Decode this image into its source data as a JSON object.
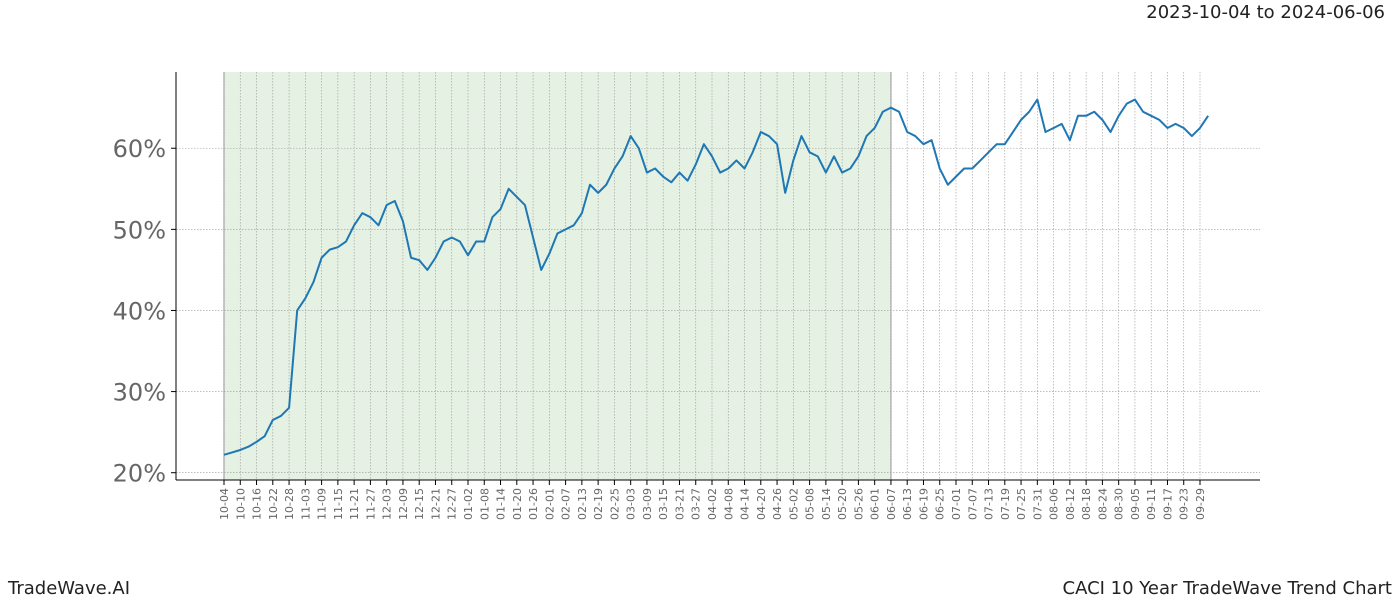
{
  "chart_data": {
    "type": "line",
    "date_range": "2023-10-04 to 2024-06-06",
    "brand": "TradeWave.AI",
    "title": "CACI 10 Year TradeWave Trend Chart",
    "categories": [
      "10-04",
      null,
      "10-10",
      null,
      "10-16",
      null,
      "10-22",
      null,
      "10-28",
      null,
      "11-03",
      null,
      "11-09",
      null,
      "11-15",
      null,
      "11-21",
      null,
      "11-27",
      null,
      "12-03",
      null,
      "12-09",
      null,
      "12-15",
      null,
      "12-21",
      null,
      "12-27",
      null,
      "01-02",
      null,
      "01-08",
      null,
      "01-14",
      null,
      "01-20",
      null,
      "01-26",
      null,
      "02-01",
      null,
      "02-07",
      null,
      "02-13",
      null,
      "02-19",
      null,
      "02-25",
      null,
      "03-03",
      null,
      "03-09",
      null,
      "03-15",
      null,
      "03-21",
      null,
      "03-27",
      null,
      "04-02",
      null,
      "04-08",
      null,
      "04-14",
      null,
      "04-20",
      null,
      "04-26",
      null,
      "05-02",
      null,
      "05-08",
      null,
      "05-14",
      null,
      "05-20",
      null,
      "05-26",
      null,
      "06-01",
      null,
      "06-07",
      null,
      "06-13",
      null,
      "06-19",
      null,
      "06-25",
      null,
      "07-01",
      null,
      "07-07",
      null,
      "07-13",
      null,
      "07-19",
      null,
      "07-25",
      null,
      "07-31",
      null,
      "08-06",
      null,
      "08-12",
      null,
      "08-18",
      null,
      "08-24",
      null,
      "08-30",
      null,
      "09-05",
      null,
      "09-11",
      null,
      "09-17",
      null,
      "09-23",
      null,
      "09-29",
      null
    ],
    "values": [
      22.2,
      22.5,
      22.8,
      23.2,
      23.8,
      24.5,
      26.5,
      27.0,
      28,
      40,
      41.5,
      43.5,
      46.5,
      47.5,
      47.8,
      48.5,
      50.5,
      52,
      51.5,
      50.5,
      53,
      53.5,
      51,
      46.5,
      46.2,
      45,
      46.5,
      48.5,
      49,
      48.5,
      46.8,
      48.5,
      48.5,
      51.5,
      52.5,
      55,
      54,
      53,
      49,
      45,
      47,
      49.5,
      50,
      50.5,
      52,
      55.5,
      54.5,
      55.5,
      57.5,
      59,
      61.5,
      60,
      57,
      57.5,
      56.5,
      55.8,
      57,
      56,
      58,
      60.5,
      59,
      57,
      57.5,
      58.5,
      57.5,
      59.5,
      62,
      61.5,
      60.5,
      54.5,
      58.5,
      61.5,
      59.5,
      59,
      57,
      59,
      57,
      57.5,
      59,
      61.5,
      62.5,
      64.5,
      65,
      64.5,
      62,
      61.5,
      60.5,
      61,
      57.5,
      55.5,
      56.5,
      57.5,
      57.5,
      58.5,
      59.5,
      60.5,
      60.5,
      62,
      63.5,
      64.5,
      66,
      62,
      62.5,
      63,
      61,
      64,
      64,
      64.5,
      63.5,
      62,
      64,
      65.5,
      66,
      64.5,
      64,
      63.5,
      62.5,
      63,
      62.5,
      61.5,
      62.5,
      64
    ],
    "color": "#1f77b4",
    "shaded_span": [
      "10-04",
      "06-07"
    ],
    "shade_color": "#e5f1e3",
    "ylim": [
      19.1,
      69.4
    ],
    "yticks": [
      {
        "value": 20,
        "label": "20%"
      },
      {
        "value": 30,
        "label": "30%"
      },
      {
        "value": 40,
        "label": "40%"
      },
      {
        "value": 50,
        "label": "50%"
      },
      {
        "value": 60,
        "label": "60%"
      }
    ],
    "grid": true
  }
}
